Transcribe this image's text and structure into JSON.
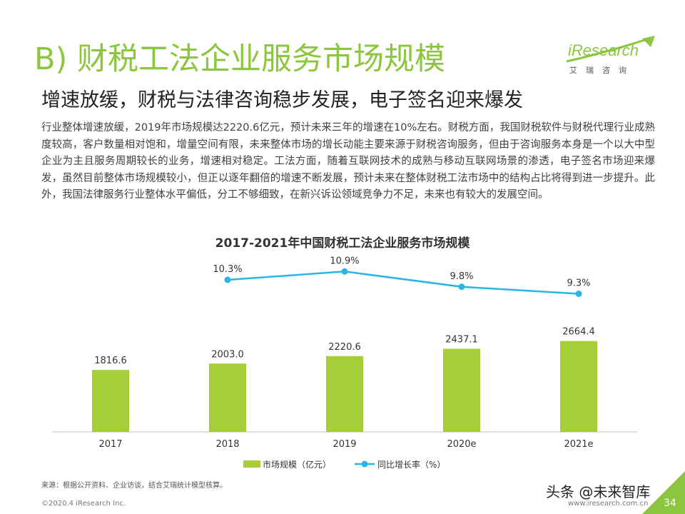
{
  "page": {
    "title": "B) 财税工法企业服务市场规模",
    "subtitle": "增速放缓，财税与法律咨询稳步发展，电子签名迎来爆发",
    "paragraph": "行业整体增速放缓，2019年市场规模达2220.6亿元，预计未来三年的增速在10%左右。财税方面，我国财税软件与财税代理行业成熟度较高，客户数量相对饱和，增量空间有限，未来整体市场的增长动能主要来源于财税咨询服务，但由于咨询服务本身是一个以大中型企业为主且服务周期较长的业务，增速相对稳定。工法方面，随着互联网技术的成熟与移动互联网场景的渗透，电子签名市场迎来爆发，虽然目前整体市场规模较小，但正以逐年翻倍的增速不断发展，预计未来在整体财税工法市场中的结构占比将得到进一步提升。此外，我国法律服务行业整体水平偏低，分工不够细致，在新兴诉讼领域竞争力不足，未来也有较大的发展空间。",
    "source": "来源：根据公开资料、企业访谈，结合艾瑞统计模型核算。",
    "copyright": "©2020.4 iResearch Inc.",
    "site": "www.iresearch.com.cn",
    "page_number": "34",
    "watermark": "头条 @未来智库"
  },
  "logo": {
    "word": "iResearch",
    "sub": "艾瑞咨询"
  },
  "colors": {
    "accent": "#8cc63f",
    "bar": "#a6ce39",
    "line": "#29b6e6"
  },
  "chart_data": {
    "type": "bar",
    "title": "2017-2021年中国财税工法企业服务市场规模",
    "categories": [
      "2017",
      "2018",
      "2019",
      "2020e",
      "2021e"
    ],
    "series": [
      {
        "name": "市场规模（亿元）",
        "type": "bar",
        "values": [
          1816.6,
          2003.0,
          2220.6,
          2437.1,
          2664.4
        ],
        "labels": [
          "1816.6",
          "2003.0",
          "2220.6",
          "2437.1",
          "2664.4"
        ]
      },
      {
        "name": "同比增长率（%）",
        "type": "line",
        "values": [
          null,
          10.3,
          10.9,
          9.8,
          9.3
        ],
        "labels": [
          "",
          "10.3%",
          "10.9%",
          "9.8%",
          "9.3%"
        ]
      }
    ],
    "legend": "bottom",
    "grid": false
  }
}
